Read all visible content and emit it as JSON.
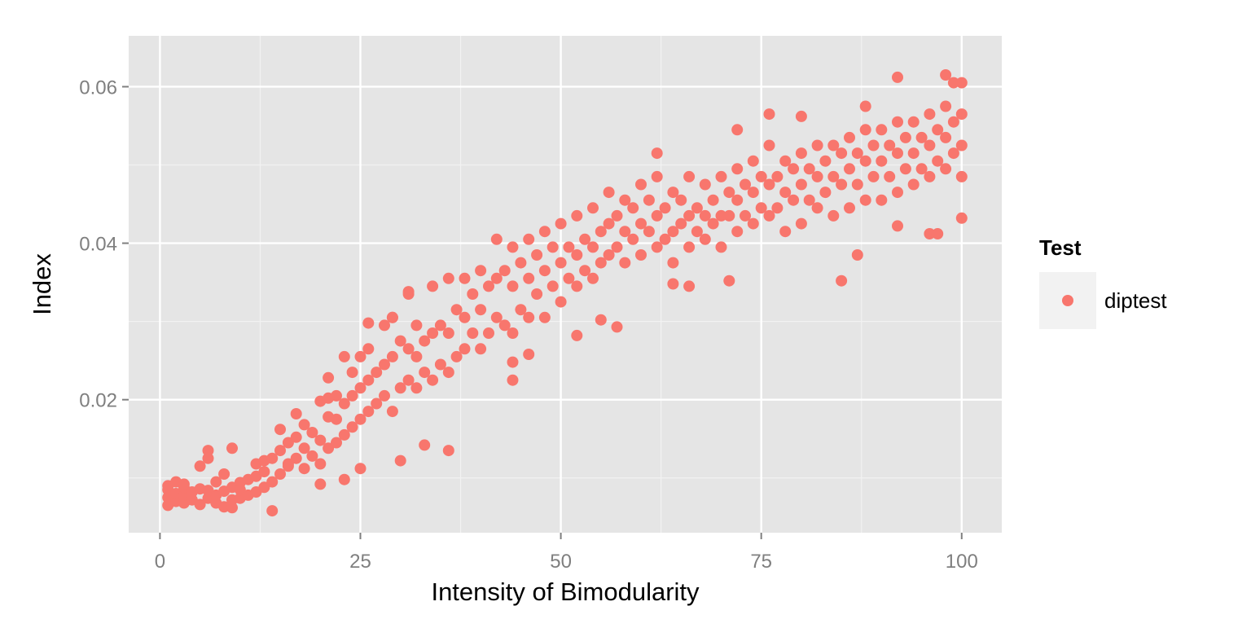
{
  "chart_data": {
    "type": "scatter",
    "title": "",
    "xlabel": "Intensity of Bimodularity",
    "ylabel": "Index",
    "xlim": [
      -3.9,
      105
    ],
    "ylim": [
      0.003,
      0.0665
    ],
    "x_ticks": [
      0,
      25,
      50,
      75,
      100
    ],
    "x_tick_labels": [
      "0",
      "25",
      "50",
      "75",
      "100"
    ],
    "y_ticks": [
      0.02,
      0.04,
      0.06
    ],
    "y_tick_labels": [
      "0.02",
      "0.04",
      "0.06"
    ],
    "grid": true,
    "legend": {
      "title": "Test",
      "position": "right",
      "entries": [
        "diptest"
      ]
    },
    "series": [
      {
        "name": "diptest",
        "color": "#F8766D",
        "x": [
          1,
          1,
          1,
          1,
          2,
          2,
          2,
          3,
          3,
          3,
          3,
          4,
          4,
          5,
          5,
          5,
          6,
          6,
          6,
          7,
          7,
          7,
          8,
          8,
          8,
          9,
          9,
          9,
          10,
          10,
          10,
          11,
          11,
          12,
          12,
          12,
          13,
          13,
          13,
          14,
          14,
          15,
          15,
          15,
          16,
          16,
          17,
          17,
          17,
          18,
          18,
          18,
          19,
          19,
          20,
          20,
          20,
          21,
          21,
          21,
          22,
          22,
          22,
          23,
          23,
          23,
          24,
          24,
          24,
          25,
          25,
          25,
          26,
          26,
          26,
          27,
          27,
          28,
          28,
          28,
          29,
          29,
          29,
          30,
          30,
          31,
          31,
          31,
          32,
          32,
          32,
          33,
          33,
          34,
          34,
          34,
          35,
          35,
          36,
          36,
          36,
          37,
          37,
          38,
          38,
          38,
          39,
          39,
          40,
          40,
          40,
          41,
          41,
          42,
          42,
          42,
          43,
          43,
          44,
          44,
          44,
          45,
          45,
          46,
          46,
          46,
          47,
          47,
          48,
          48,
          48,
          49,
          49,
          50,
          50,
          50,
          51,
          51,
          52,
          52,
          52,
          53,
          53,
          54,
          54,
          54,
          55,
          55,
          56,
          56,
          56,
          57,
          57,
          58,
          58,
          58,
          59,
          59,
          60,
          60,
          60,
          61,
          61,
          62,
          62,
          62,
          63,
          63,
          64,
          64,
          64,
          65,
          65,
          66,
          66,
          66,
          67,
          67,
          68,
          68,
          68,
          69,
          69,
          70,
          70,
          70,
          71,
          71,
          72,
          72,
          72,
          73,
          73,
          74,
          74,
          74,
          75,
          75,
          76,
          76,
          76,
          77,
          77,
          78,
          78,
          78,
          79,
          79,
          80,
          80,
          80,
          81,
          81,
          82,
          82,
          82,
          83,
          83,
          84,
          84,
          84,
          85,
          85,
          86,
          86,
          86,
          87,
          87,
          88,
          88,
          88,
          89,
          89,
          90,
          90,
          90,
          91,
          91,
          92,
          92,
          92,
          93,
          93,
          94,
          94,
          94,
          95,
          95,
          96,
          96,
          96,
          97,
          97,
          98,
          98,
          98,
          99,
          99,
          100,
          100,
          100,
          100,
          6,
          9,
          14,
          16,
          20,
          23,
          25,
          30,
          33,
          36,
          21,
          26,
          29,
          31,
          44,
          46,
          52,
          55,
          57,
          64,
          66,
          71,
          85,
          87,
          92,
          97,
          100,
          96,
          44,
          62,
          72,
          76,
          80,
          88,
          92,
          98,
          99
        ],
        "y": [
          0.0065,
          0.0075,
          0.009,
          0.0085,
          0.007,
          0.008,
          0.0095,
          0.0068,
          0.0078,
          0.0088,
          0.0092,
          0.0072,
          0.0082,
          0.0066,
          0.0086,
          0.0115,
          0.0074,
          0.0084,
          0.0135,
          0.0068,
          0.0078,
          0.0095,
          0.0063,
          0.0083,
          0.0105,
          0.0072,
          0.0088,
          0.0138,
          0.0074,
          0.0094,
          0.0085,
          0.0078,
          0.0098,
          0.0082,
          0.0102,
          0.0118,
          0.0088,
          0.0108,
          0.0122,
          0.0095,
          0.0125,
          0.0105,
          0.0135,
          0.0162,
          0.0115,
          0.0145,
          0.0125,
          0.0152,
          0.0182,
          0.0112,
          0.0138,
          0.0168,
          0.0128,
          0.0158,
          0.0118,
          0.0148,
          0.0198,
          0.0138,
          0.0178,
          0.0228,
          0.0145,
          0.0175,
          0.0205,
          0.0155,
          0.0195,
          0.0255,
          0.0165,
          0.0205,
          0.0235,
          0.0175,
          0.0215,
          0.0255,
          0.0185,
          0.0225,
          0.0265,
          0.0195,
          0.0235,
          0.0205,
          0.0245,
          0.0295,
          0.0185,
          0.0255,
          0.0305,
          0.0215,
          0.0275,
          0.0225,
          0.0265,
          0.0335,
          0.0215,
          0.0255,
          0.0295,
          0.0235,
          0.0275,
          0.0225,
          0.0285,
          0.0345,
          0.0245,
          0.0295,
          0.0235,
          0.0285,
          0.0355,
          0.0255,
          0.0315,
          0.0265,
          0.0305,
          0.0355,
          0.0285,
          0.0335,
          0.0265,
          0.0315,
          0.0365,
          0.0285,
          0.0345,
          0.0305,
          0.0355,
          0.0405,
          0.0295,
          0.0365,
          0.0285,
          0.0345,
          0.0395,
          0.0315,
          0.0375,
          0.0305,
          0.0355,
          0.0405,
          0.0335,
          0.0385,
          0.0305,
          0.0365,
          0.0415,
          0.0345,
          0.0395,
          0.0325,
          0.0375,
          0.0425,
          0.0355,
          0.0395,
          0.0345,
          0.0385,
          0.0435,
          0.0365,
          0.0405,
          0.0355,
          0.0395,
          0.0445,
          0.0375,
          0.0415,
          0.0385,
          0.0425,
          0.0465,
          0.0395,
          0.0435,
          0.0375,
          0.0415,
          0.0455,
          0.0405,
          0.0445,
          0.0385,
          0.0425,
          0.0475,
          0.0415,
          0.0455,
          0.0395,
          0.0435,
          0.0485,
          0.0405,
          0.0445,
          0.0375,
          0.0415,
          0.0465,
          0.0425,
          0.0455,
          0.0395,
          0.0435,
          0.0485,
          0.0415,
          0.0445,
          0.0405,
          0.0435,
          0.0475,
          0.0425,
          0.0455,
          0.0395,
          0.0435,
          0.0485,
          0.0435,
          0.0465,
          0.0415,
          0.0455,
          0.0495,
          0.0435,
          0.0475,
          0.0425,
          0.0465,
          0.0505,
          0.0445,
          0.0485,
          0.0435,
          0.0475,
          0.0525,
          0.0445,
          0.0485,
          0.0415,
          0.0465,
          0.0505,
          0.0455,
          0.0495,
          0.0425,
          0.0475,
          0.0515,
          0.0455,
          0.0495,
          0.0445,
          0.0485,
          0.0525,
          0.0465,
          0.0505,
          0.0435,
          0.0485,
          0.0525,
          0.0475,
          0.0515,
          0.0445,
          0.0495,
          0.0535,
          0.0475,
          0.0515,
          0.0455,
          0.0505,
          0.0545,
          0.0485,
          0.0525,
          0.0455,
          0.0505,
          0.0545,
          0.0485,
          0.0525,
          0.0465,
          0.0515,
          0.0555,
          0.0495,
          0.0535,
          0.0475,
          0.0515,
          0.0555,
          0.0495,
          0.0535,
          0.0485,
          0.0525,
          0.0565,
          0.0505,
          0.0545,
          0.0495,
          0.0535,
          0.0575,
          0.0515,
          0.0555,
          0.0485,
          0.0525,
          0.0565,
          0.0605,
          0.0125,
          0.0062,
          0.0058,
          0.0118,
          0.0092,
          0.0098,
          0.0112,
          0.0122,
          0.0142,
          0.0135,
          0.0202,
          0.0298,
          0.0305,
          0.0338,
          0.0225,
          0.0258,
          0.0282,
          0.0302,
          0.0293,
          0.0348,
          0.0345,
          0.0352,
          0.0352,
          0.0385,
          0.0422,
          0.0412,
          0.0432,
          0.0412,
          0.0248,
          0.0515,
          0.0545,
          0.0565,
          0.0562,
          0.0575,
          0.0612,
          0.0615,
          0.0605
        ]
      }
    ]
  }
}
